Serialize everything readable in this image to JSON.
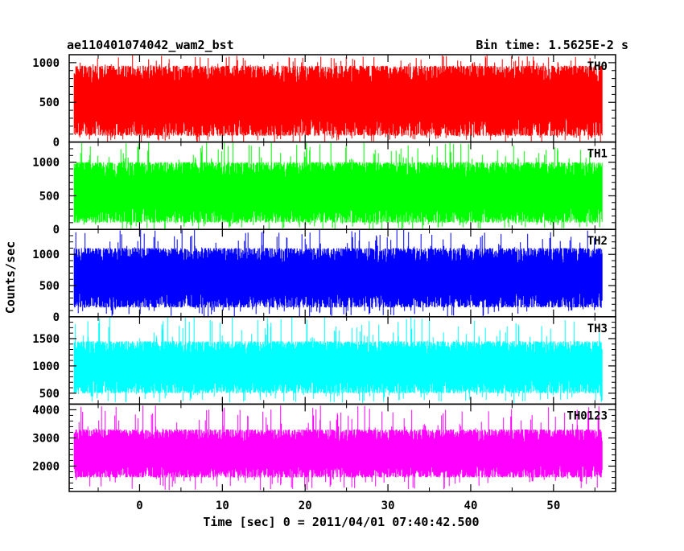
{
  "chart_data": {
    "type": "line",
    "title": "ae110401074042_wam2_bst",
    "subtitle": "Bin time: 1.5625E-2 s",
    "xlabel": "Time [sec] 0 = 2011/04/01 07:40:42.500",
    "ylabel": "Counts/sec",
    "xlim": [
      -8.5,
      57.5
    ],
    "x_data_range": [
      -7.9,
      55.9
    ],
    "x_ticks": [
      0,
      10,
      20,
      30,
      40,
      50
    ],
    "x_tick_labels": [
      "0",
      "10",
      "20",
      "30",
      "40",
      "50"
    ],
    "bin_time_s": 0.015625,
    "grid": false,
    "panels": [
      {
        "name": "TH0",
        "color": "#ff0000",
        "ylim": [
          0,
          1100
        ],
        "y_ticks": [
          0,
          500,
          1000
        ],
        "y_tick_labels": [
          "0",
          "500",
          "1000"
        ],
        "typical_low": 80,
        "typical_high": 960,
        "min": 0,
        "max": 1100
      },
      {
        "name": "TH1",
        "color": "#00ff00",
        "ylim": [
          0,
          1300
        ],
        "y_ticks": [
          0,
          500,
          1000
        ],
        "y_tick_labels": [
          "0",
          "500",
          "1000"
        ],
        "typical_low": 100,
        "typical_high": 1000,
        "min": 0,
        "max": 1300
      },
      {
        "name": "TH2",
        "color": "#0000ff",
        "ylim": [
          0,
          1400
        ],
        "y_ticks": [
          0,
          500,
          1000
        ],
        "y_tick_labels": [
          "0",
          "500",
          "1000"
        ],
        "typical_low": 150,
        "typical_high": 1100,
        "min": 0,
        "max": 1400
      },
      {
        "name": "TH3",
        "color": "#00ffff",
        "ylim": [
          300,
          1900
        ],
        "y_ticks": [
          500,
          1000,
          1500
        ],
        "y_tick_labels": [
          "500",
          "1000",
          "1500"
        ],
        "typical_low": 500,
        "typical_high": 1450,
        "min": 320,
        "max": 1900
      },
      {
        "name": "TH0123",
        "color": "#ff00ff",
        "ylim": [
          1100,
          4200
        ],
        "y_ticks": [
          2000,
          3000,
          4000
        ],
        "y_tick_labels": [
          "2000",
          "3000",
          "4000"
        ],
        "typical_low": 1600,
        "typical_high": 3300,
        "min": 1150,
        "max": 4150
      }
    ]
  }
}
